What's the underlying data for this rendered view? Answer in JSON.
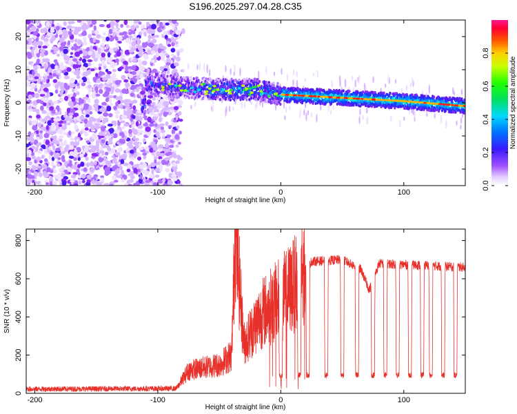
{
  "title": "S196.2025.297.04.28.C35",
  "colors": {
    "snr_line": "#e8302a",
    "spectrogram_base": "#7a1cf0"
  },
  "chart_data": [
    {
      "type": "heatmap",
      "name": "spectrogram",
      "xlabel": "Height of straight line (km)",
      "ylabel": "Frequency (Hz)",
      "xlim": [
        -207,
        150
      ],
      "ylim": [
        -25,
        25
      ],
      "xticks": [
        -200,
        -100,
        0,
        100
      ],
      "yticks": [
        -20,
        -10,
        0,
        10,
        20
      ],
      "xtick_labels": [
        "-200",
        "-100",
        "0",
        "100"
      ],
      "ytick_labels": [
        "-20",
        "-10",
        "0",
        "10",
        "20"
      ],
      "description_points": {
        "noise_region_end_km": -85,
        "track": [
          {
            "x": -110,
            "y": 6
          },
          {
            "x": -80,
            "y": 4.5
          },
          {
            "x": -50,
            "y": 4
          },
          {
            "x": -20,
            "y": 4
          },
          {
            "x": 0,
            "y": 2.5
          },
          {
            "x": 50,
            "y": 1.5
          },
          {
            "x": 100,
            "y": 0.5
          },
          {
            "x": 150,
            "y": -1
          }
        ]
      },
      "colorbar": {
        "label": "Normalized spectral amplitude",
        "range": [
          0,
          1
        ],
        "ticks": [
          0.0,
          0.2,
          0.4,
          0.6,
          0.8
        ],
        "tick_labels": [
          "0.0",
          "0.2",
          "0.4",
          "0.6",
          "0.8"
        ]
      }
    },
    {
      "type": "line",
      "name": "snr",
      "xlabel": "Height of straight line (km)",
      "ylabel": "SNR (10 * v/v)",
      "xlim": [
        -207,
        150
      ],
      "ylim": [
        0,
        860
      ],
      "xticks": [
        -200,
        -100,
        0,
        100
      ],
      "yticks": [
        0,
        200,
        400,
        600,
        800
      ],
      "xtick_labels": [
        "-200",
        "-100",
        "0",
        "100"
      ],
      "ytick_labels": [
        "0",
        "200",
        "400",
        "600",
        "800"
      ],
      "series": [
        {
          "name": "SNR",
          "keypoints": [
            {
              "x": -207,
              "y": 22
            },
            {
              "x": -85,
              "y": 25
            },
            {
              "x": -75,
              "y": 120
            },
            {
              "x": -50,
              "y": 150
            },
            {
              "x": -40,
              "y": 200
            },
            {
              "x": -37,
              "y": 860
            },
            {
              "x": -30,
              "y": 260
            },
            {
              "x": -15,
              "y": 420
            },
            {
              "x": 0,
              "y": 500
            },
            {
              "x": 10,
              "y": 560
            },
            {
              "x": 25,
              "y": 690
            },
            {
              "x": 50,
              "y": 700
            },
            {
              "x": 65,
              "y": 650
            },
            {
              "x": 72,
              "y": 540
            },
            {
              "x": 80,
              "y": 680
            },
            {
              "x": 150,
              "y": 660
            }
          ],
          "dips": [
            0,
            15,
            22,
            37,
            50,
            62,
            75,
            85,
            95,
            105,
            115,
            122,
            132,
            142
          ],
          "dip_value": 95
        }
      ]
    }
  ]
}
